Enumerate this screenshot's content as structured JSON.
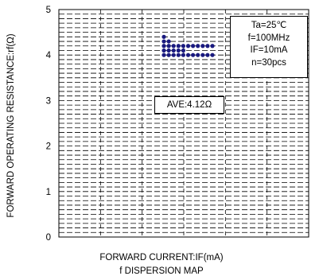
{
  "chart_data": {
    "type": "scatter",
    "title": "",
    "xlabel": "FORWARD CURRENT:IF(mA)",
    "ylabel": "FORWARD OPERATING RESISTANCE:rf(Ω)",
    "ylim": [
      0,
      5
    ],
    "yticks": [
      "0",
      "1",
      "2",
      "3",
      "4",
      "5"
    ],
    "x_ticks_labeled": false,
    "grid": "dashed",
    "series": [
      {
        "points": [
          {
            "x": 1,
            "y": 4.4
          },
          {
            "x": 1,
            "y": 4.3
          },
          {
            "x": 1,
            "y": 4.2
          },
          {
            "x": 1,
            "y": 4.1
          },
          {
            "x": 1,
            "y": 4.0
          },
          {
            "x": 2,
            "y": 4.3
          },
          {
            "x": 2,
            "y": 4.2
          },
          {
            "x": 2,
            "y": 4.1
          },
          {
            "x": 2,
            "y": 4.0
          },
          {
            "x": 3,
            "y": 4.2
          },
          {
            "x": 3,
            "y": 4.1
          },
          {
            "x": 3,
            "y": 4.0
          },
          {
            "x": 4,
            "y": 4.2
          },
          {
            "x": 4,
            "y": 4.1
          },
          {
            "x": 4,
            "y": 4.0
          },
          {
            "x": 5,
            "y": 4.2
          },
          {
            "x": 5,
            "y": 4.1
          },
          {
            "x": 5,
            "y": 4.0
          },
          {
            "x": 6,
            "y": 4.2
          },
          {
            "x": 6,
            "y": 4.0
          },
          {
            "x": 7,
            "y": 4.2
          },
          {
            "x": 7,
            "y": 4.0
          },
          {
            "x": 8,
            "y": 4.2
          },
          {
            "x": 8,
            "y": 4.0
          },
          {
            "x": 9,
            "y": 4.2
          },
          {
            "x": 9,
            "y": 4.0
          },
          {
            "x": 10,
            "y": 4.2
          },
          {
            "x": 10,
            "y": 4.0
          },
          {
            "x": 11,
            "y": 4.2
          },
          {
            "x": 11,
            "y": 4.0
          }
        ],
        "color": "#1a1a80"
      }
    ],
    "conditions": [
      "Ta=25℃",
      "f=100MHz",
      "IF=10mA",
      "n=30pcs"
    ],
    "average_label": "AVE:4.12Ω",
    "footer_text": "f DISPERSION MAP"
  }
}
